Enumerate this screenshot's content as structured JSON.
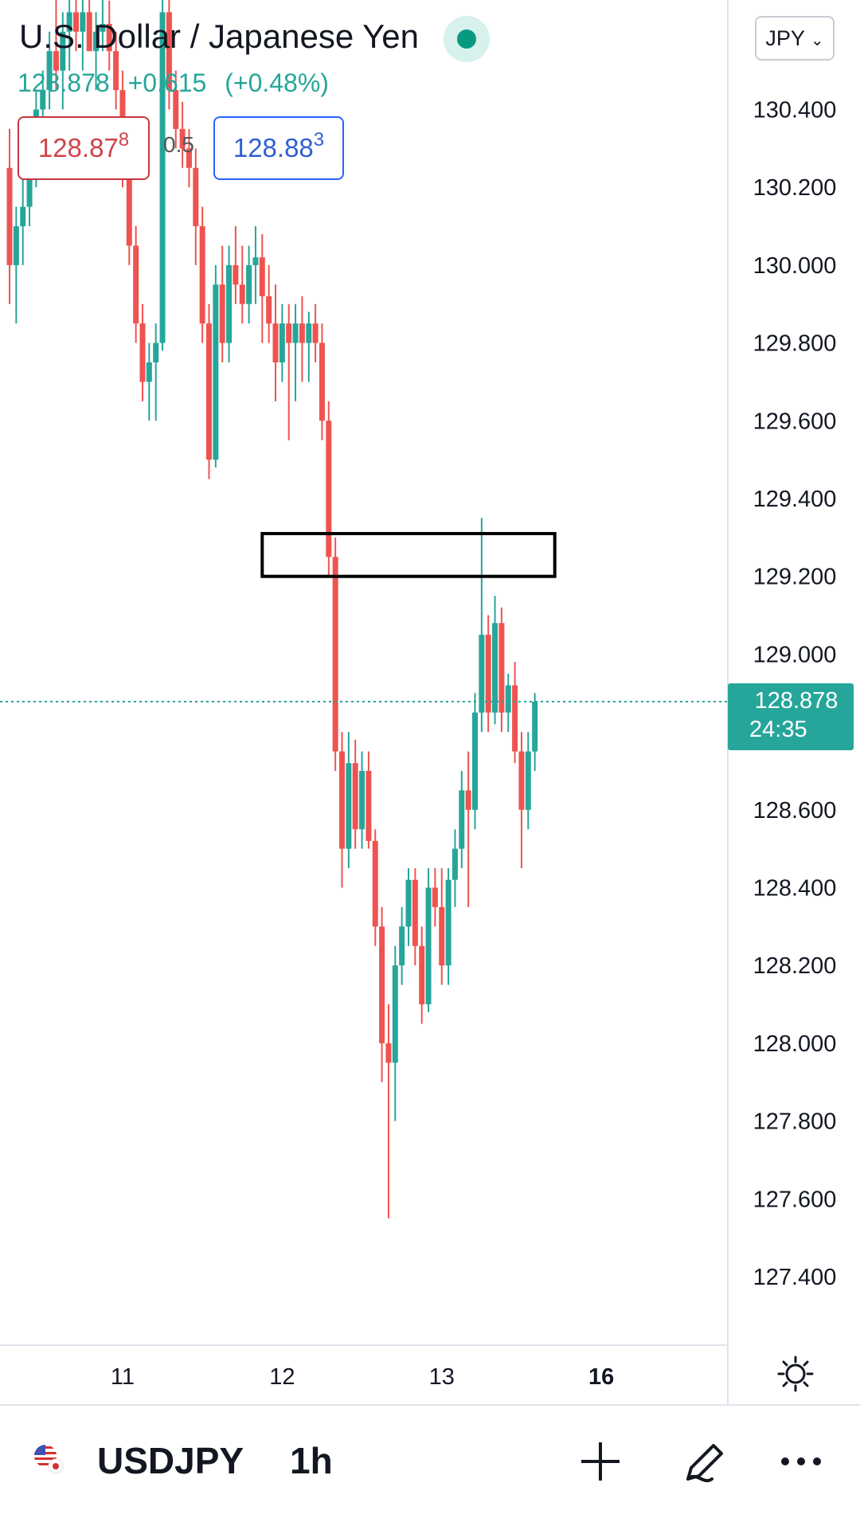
{
  "header": {
    "title": "U.S. Dollar / Japanese Yen",
    "last_price": "128.878",
    "change": "+0.615",
    "change_pct": "(+0.48%)",
    "sell_price_main": "128.87",
    "sell_price_pip": "8",
    "spread": "0.5",
    "buy_price_main": "128.88",
    "buy_price_pip": "3",
    "currency_button": "JPY",
    "live_status_color": "#089981"
  },
  "price_label": {
    "price": "128.878",
    "countdown": "24:35",
    "color": "#26a69a"
  },
  "bottom_bar": {
    "ticker": "USDJPY",
    "interval": "1h",
    "flag_icon": "us-jp-flag-icon",
    "add_icon": "plus-icon",
    "draw_icon": "pen-icon",
    "more_icon": "more-dots-icon"
  },
  "colors": {
    "up": "#26a69a",
    "down": "#ef5350",
    "grid_line": "#e0e3eb",
    "current_price_line": "#26a69a"
  },
  "chart_data": {
    "type": "candlestick",
    "symbol": "USDJPY",
    "timeframe": "1h",
    "y_axis": {
      "ticks": [
        "130.400",
        "130.200",
        "130.000",
        "129.800",
        "129.600",
        "129.400",
        "129.200",
        "129.000",
        "128.600",
        "128.400",
        "128.200",
        "128.000",
        "127.800",
        "127.600",
        "127.400"
      ],
      "current_price": 128.878,
      "range": [
        127.2,
        130.9
      ]
    },
    "x_axis": {
      "ticks": [
        "11",
        "12",
        "13",
        "16"
      ],
      "tick_index": [
        17,
        41,
        65,
        89
      ]
    },
    "annotation_rectangle": {
      "price_top": 129.31,
      "price_bottom": 129.2,
      "from_index": 38,
      "to_index": 82
    },
    "candles": [
      [
        130.25,
        130.35,
        129.9,
        130.0
      ],
      [
        130.0,
        130.15,
        129.85,
        130.1
      ],
      [
        130.1,
        130.3,
        130.0,
        130.15
      ],
      [
        130.15,
        130.35,
        130.1,
        130.3
      ],
      [
        130.3,
        130.45,
        130.2,
        130.4
      ],
      [
        130.4,
        130.5,
        130.3,
        130.45
      ],
      [
        130.45,
        130.6,
        130.4,
        130.55
      ],
      [
        130.55,
        130.7,
        130.45,
        130.5
      ],
      [
        130.5,
        130.65,
        130.4,
        130.6
      ],
      [
        130.6,
        130.7,
        130.5,
        130.65
      ],
      [
        130.65,
        130.75,
        130.55,
        130.6
      ],
      [
        130.6,
        130.7,
        130.5,
        130.65
      ],
      [
        130.65,
        130.75,
        130.55,
        130.55
      ],
      [
        130.55,
        130.65,
        130.45,
        130.6
      ],
      [
        130.6,
        130.7,
        130.55,
        130.62
      ],
      [
        130.62,
        130.68,
        130.5,
        130.55
      ],
      [
        130.55,
        130.6,
        130.4,
        130.45
      ],
      [
        130.45,
        130.5,
        130.2,
        130.25
      ],
      [
        130.25,
        130.3,
        130.0,
        130.05
      ],
      [
        130.05,
        130.1,
        129.8,
        129.85
      ],
      [
        129.85,
        129.9,
        129.65,
        129.7
      ],
      [
        129.7,
        129.8,
        129.6,
        129.75
      ],
      [
        129.75,
        129.85,
        129.6,
        129.8
      ],
      [
        129.8,
        130.85,
        129.78,
        130.65
      ],
      [
        130.65,
        130.9,
        130.4,
        130.45
      ],
      [
        130.45,
        130.5,
        130.3,
        130.35
      ],
      [
        130.35,
        130.42,
        130.25,
        130.3
      ],
      [
        130.3,
        130.35,
        130.2,
        130.25
      ],
      [
        130.25,
        130.3,
        130.0,
        130.1
      ],
      [
        130.1,
        130.15,
        129.8,
        129.85
      ],
      [
        129.85,
        129.9,
        129.45,
        129.5
      ],
      [
        129.5,
        130.0,
        129.48,
        129.95
      ],
      [
        129.95,
        130.05,
        129.75,
        129.8
      ],
      [
        129.8,
        130.05,
        129.75,
        130.0
      ],
      [
        130.0,
        130.1,
        129.9,
        129.95
      ],
      [
        129.95,
        130.05,
        129.85,
        129.9
      ],
      [
        129.9,
        130.05,
        129.85,
        130.0
      ],
      [
        130.0,
        130.1,
        129.9,
        130.02
      ],
      [
        130.02,
        130.08,
        129.8,
        129.92
      ],
      [
        129.92,
        130.0,
        129.8,
        129.85
      ],
      [
        129.85,
        129.95,
        129.65,
        129.75
      ],
      [
        129.75,
        129.9,
        129.7,
        129.85
      ],
      [
        129.85,
        129.9,
        129.55,
        129.8
      ],
      [
        129.8,
        129.9,
        129.65,
        129.85
      ],
      [
        129.85,
        129.92,
        129.7,
        129.8
      ],
      [
        129.8,
        129.88,
        129.7,
        129.85
      ],
      [
        129.85,
        129.9,
        129.75,
        129.8
      ],
      [
        129.8,
        129.85,
        129.55,
        129.6
      ],
      [
        129.6,
        129.65,
        129.2,
        129.25
      ],
      [
        129.25,
        129.3,
        128.7,
        128.75
      ],
      [
        128.75,
        128.8,
        128.4,
        128.5
      ],
      [
        128.5,
        128.8,
        128.45,
        128.72
      ],
      [
        128.72,
        128.78,
        128.5,
        128.55
      ],
      [
        128.55,
        128.75,
        128.5,
        128.7
      ],
      [
        128.7,
        128.75,
        128.5,
        128.52
      ],
      [
        128.52,
        128.55,
        128.25,
        128.3
      ],
      [
        128.3,
        128.35,
        127.9,
        128.0
      ],
      [
        128.0,
        128.1,
        127.55,
        127.95
      ],
      [
        127.95,
        128.25,
        127.8,
        128.2
      ],
      [
        128.2,
        128.35,
        128.15,
        128.3
      ],
      [
        128.3,
        128.45,
        128.25,
        128.42
      ],
      [
        128.42,
        128.45,
        128.2,
        128.25
      ],
      [
        128.25,
        128.3,
        128.05,
        128.1
      ],
      [
        128.1,
        128.45,
        128.08,
        128.4
      ],
      [
        128.4,
        128.45,
        128.3,
        128.35
      ],
      [
        128.35,
        128.45,
        128.15,
        128.2
      ],
      [
        128.2,
        128.45,
        128.15,
        128.42
      ],
      [
        128.42,
        128.55,
        128.35,
        128.5
      ],
      [
        128.5,
        128.7,
        128.45,
        128.65
      ],
      [
        128.65,
        128.75,
        128.35,
        128.6
      ],
      [
        128.6,
        128.9,
        128.55,
        128.85
      ],
      [
        128.85,
        129.35,
        128.8,
        129.05
      ],
      [
        129.05,
        129.1,
        128.8,
        128.85
      ],
      [
        128.85,
        129.15,
        128.82,
        129.08
      ],
      [
        129.08,
        129.12,
        128.8,
        128.85
      ],
      [
        128.85,
        128.95,
        128.8,
        128.92
      ],
      [
        128.92,
        128.98,
        128.72,
        128.75
      ],
      [
        128.75,
        128.8,
        128.45,
        128.6
      ],
      [
        128.6,
        128.8,
        128.55,
        128.75
      ],
      [
        128.75,
        128.9,
        128.7,
        128.878
      ]
    ]
  }
}
